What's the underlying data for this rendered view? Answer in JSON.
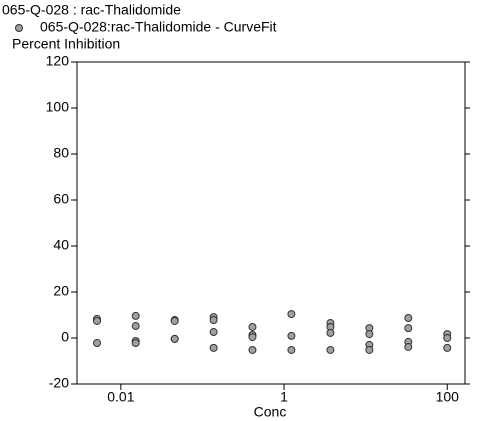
{
  "chart_data": {
    "type": "scatter",
    "title": "065-Q-028  : rac-Thalidomide",
    "y_label": "Percent Inhibition",
    "x_label": "Conc",
    "x_scale": "log",
    "grid": false,
    "series": [
      {
        "name": "065-Q-028:rac-Thalidomide - CurveFit",
        "color": "#a0a0a0",
        "x": [
          0.0051,
          0.0051,
          0.0051,
          0.0152,
          0.0152,
          0.0152,
          0.0152,
          0.0457,
          0.0457,
          0.0457,
          0.0457,
          0.137,
          0.137,
          0.137,
          0.137,
          0.41,
          0.41,
          0.41,
          0.41,
          1.23,
          1.23,
          1.23,
          3.7,
          3.7,
          3.7,
          3.7,
          11.1,
          11.1,
          11.1,
          11.1,
          33.3,
          33.3,
          33.3,
          33.3,
          100,
          100,
          100
        ],
        "values": [
          8.3,
          7.4,
          -2.2,
          9.6,
          5.2,
          -1.3,
          -2.2,
          7.8,
          7.4,
          -0.4,
          -0.4,
          9.1,
          7.8,
          2.6,
          -4.3,
          4.8,
          1.3,
          0.4,
          -5.2,
          10.4,
          0.9,
          -5.2,
          6.5,
          4.8,
          2.2,
          -5.2,
          4.3,
          1.7,
          -3.0,
          -5.2,
          8.7,
          4.3,
          -1.7,
          -3.9,
          1.7,
          0,
          -4.3
        ]
      }
    ],
    "xlim": [
      0.0029,
      165
    ],
    "xticks": [
      0.01,
      1,
      100
    ],
    "ylim": [
      -20,
      120
    ],
    "yticks": [
      -20,
      0,
      20,
      40,
      60,
      80,
      100,
      120
    ]
  }
}
